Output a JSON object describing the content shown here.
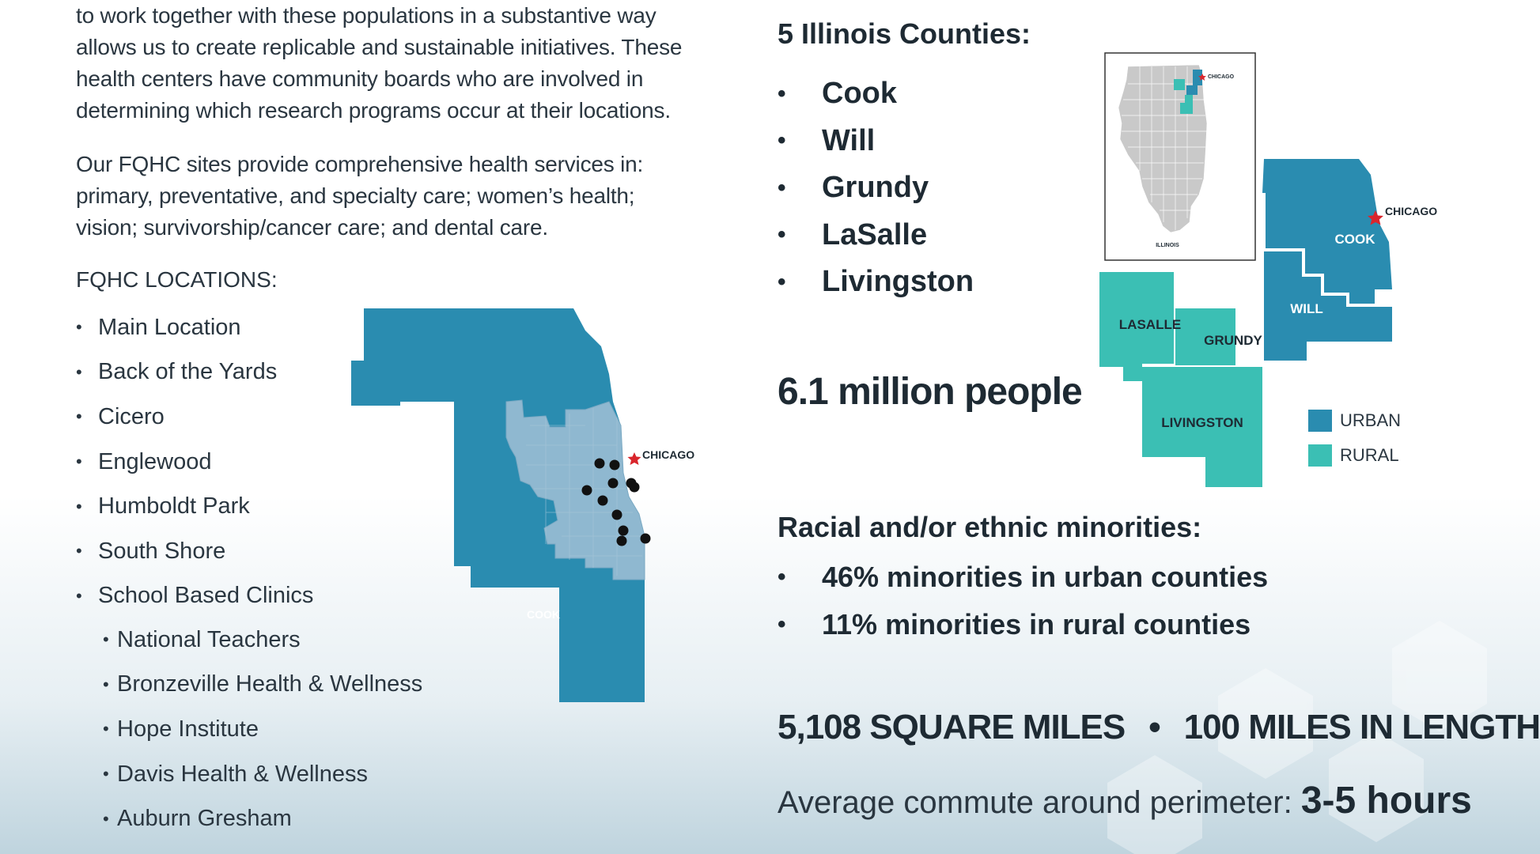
{
  "paragraphs": {
    "p1": [
      "to work together with these populations in a substantive way",
      "allows us to create replicable and sustainable initiatives. These",
      "health centers have community boards who are involved in",
      "determining which research programs occur at their locations."
    ],
    "p2": [
      "Our FQHC sites provide comprehensive health services in:",
      "primary, preventative, and specialty care; women’s health;",
      "vision; survivorship/cancer care; and dental care."
    ]
  },
  "locations": {
    "heading": "FQHC LOCATIONS:",
    "items": [
      "Main Location",
      "Back of the Yards",
      "Cicero",
      "Englewood",
      "Humboldt Park",
      "South Shore",
      "School Based Clinics"
    ],
    "school_clinics": [
      "National Teachers",
      "Bronzeville Health & Wellness",
      "Hope Institute",
      "Davis Health & Wellness",
      "Auburn Gresham"
    ]
  },
  "cook_map": {
    "county_label": "COOK",
    "city_label": "CHICAGO",
    "site_count": 11,
    "colors": {
      "county": "#2a8cb0",
      "city": "#8fb8d0",
      "marker": "#111111",
      "star": "#d9262c"
    }
  },
  "counties": {
    "heading": "5 Illinois Counties:",
    "items": [
      "Cook",
      "Will",
      "Grundy",
      "LaSalle",
      "Livingston"
    ]
  },
  "population": "6.1 million people",
  "region_map": {
    "state_label": "ILLINOIS",
    "city_label": "CHICAGO",
    "county_labels": {
      "cook": "COOK",
      "will": "WILL",
      "lasalle": "LASALLE",
      "grundy": "GRUNDY",
      "livingston": "LIVINGSTON"
    },
    "colors": {
      "urban": "#2a8cb0",
      "rural": "#3bbfb4",
      "state_gray": "#c9c9c9"
    }
  },
  "legend": {
    "items": [
      {
        "label": "URBAN",
        "color": "#2a8cb0"
      },
      {
        "label": "RURAL",
        "color": "#3bbfb4"
      }
    ]
  },
  "minorities": {
    "heading": "Racial and/or ethnic minorities:",
    "items": [
      "46% minorities in urban counties",
      "11% minorities in rural counties"
    ]
  },
  "stats": {
    "area": "5,108 SQUARE MILES",
    "separator": "•",
    "length": "100 MILES IN LENGTH"
  },
  "commute": {
    "label": "Average commute around perimeter: ",
    "value": "3-5 hours"
  }
}
